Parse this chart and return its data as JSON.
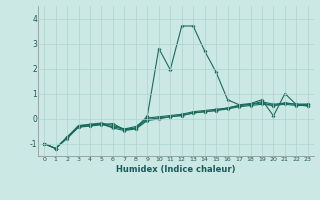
{
  "title": "",
  "xlabel": "Humidex (Indice chaleur)",
  "bg_color": "#cce8e4",
  "grid_color": "#aad4cc",
  "line_color": "#1a6b5e",
  "xlim": [
    -0.5,
    23.5
  ],
  "ylim": [
    -1.5,
    4.5
  ],
  "yticks": [
    -1,
    0,
    1,
    2,
    3,
    4
  ],
  "xticks": [
    0,
    1,
    2,
    3,
    4,
    5,
    6,
    7,
    8,
    9,
    10,
    11,
    12,
    13,
    14,
    15,
    16,
    17,
    18,
    19,
    20,
    21,
    22,
    23
  ],
  "series1_x": [
    0,
    1,
    2,
    3,
    4,
    5,
    6,
    7,
    8,
    9,
    10,
    11,
    12,
    13,
    14,
    15,
    16,
    17,
    18,
    19,
    20,
    21,
    22,
    23
  ],
  "series1_y": [
    -1.0,
    -1.2,
    -0.8,
    -0.35,
    -0.3,
    -0.25,
    -0.2,
    -0.45,
    -0.4,
    0.1,
    2.8,
    1.95,
    3.7,
    3.7,
    2.7,
    1.85,
    0.75,
    0.55,
    0.6,
    0.75,
    0.1,
    1.0,
    0.55,
    0.5
  ],
  "series2_x": [
    0,
    1,
    2,
    3,
    4,
    5,
    6,
    7,
    8,
    9,
    10,
    11,
    12,
    13,
    14,
    15,
    16,
    17,
    18,
    19,
    20,
    21,
    22,
    23
  ],
  "series2_y": [
    -1.0,
    -1.2,
    -0.75,
    -0.3,
    -0.25,
    -0.22,
    -0.38,
    -0.48,
    -0.42,
    -0.08,
    -0.02,
    0.08,
    0.12,
    0.22,
    0.28,
    0.32,
    0.38,
    0.47,
    0.52,
    0.57,
    0.52,
    0.57,
    0.52,
    0.52
  ],
  "series3_x": [
    0,
    1,
    2,
    3,
    4,
    5,
    6,
    7,
    8,
    9,
    10,
    11,
    12,
    13,
    14,
    15,
    16,
    17,
    18,
    19,
    20,
    21,
    22,
    23
  ],
  "series3_y": [
    -1.0,
    -1.2,
    -0.75,
    -0.28,
    -0.23,
    -0.18,
    -0.28,
    -0.42,
    -0.32,
    0.02,
    0.07,
    0.12,
    0.17,
    0.27,
    0.32,
    0.37,
    0.42,
    0.52,
    0.57,
    0.62,
    0.52,
    0.62,
    0.57,
    0.57
  ],
  "series4_x": [
    0,
    1,
    2,
    3,
    4,
    5,
    6,
    7,
    8,
    9,
    10,
    11,
    12,
    13,
    14,
    15,
    16,
    17,
    18,
    19,
    20,
    21,
    22,
    23
  ],
  "series4_y": [
    -1.0,
    -1.2,
    -0.75,
    -0.33,
    -0.28,
    -0.23,
    -0.33,
    -0.43,
    -0.38,
    -0.03,
    0.02,
    0.07,
    0.12,
    0.22,
    0.27,
    0.32,
    0.42,
    0.52,
    0.57,
    0.67,
    0.57,
    0.62,
    0.57,
    0.57
  ]
}
